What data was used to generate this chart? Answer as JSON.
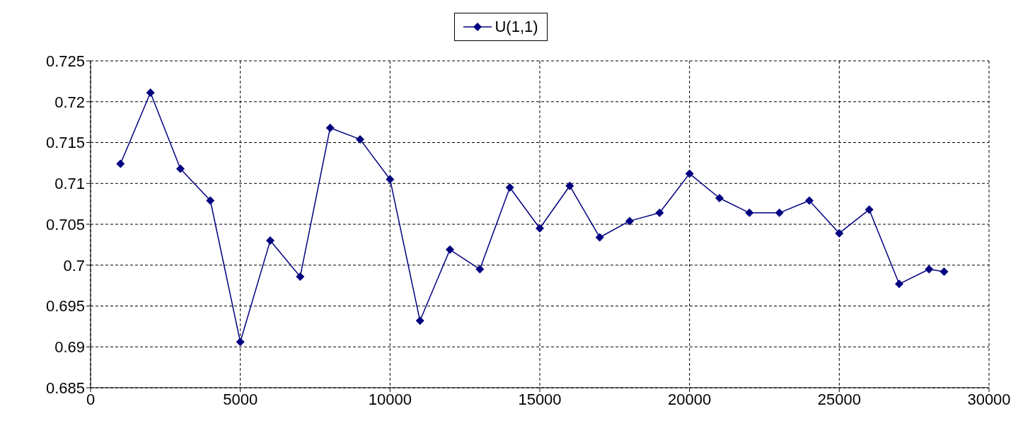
{
  "chart_data": {
    "type": "line",
    "x": [
      1000,
      2000,
      3000,
      4000,
      5000,
      6000,
      7000,
      8000,
      9000,
      10000,
      11000,
      12000,
      13000,
      14000,
      15000,
      16000,
      17000,
      18000,
      19000,
      20000,
      21000,
      22000,
      23000,
      24000,
      25000,
      26000,
      27000,
      28000,
      28500
    ],
    "series": [
      {
        "name": "U(1,1)",
        "color": "#000080",
        "values": [
          0.7124,
          0.7211,
          0.7118,
          0.7079,
          0.6906,
          0.703,
          0.6986,
          0.7168,
          0.7154,
          0.7105,
          0.6932,
          0.7019,
          0.6995,
          0.7095,
          0.7045,
          0.7097,
          0.7034,
          0.7054,
          0.7064,
          0.7112,
          0.7082,
          0.7064,
          0.7064,
          0.7079,
          0.7039,
          0.7068,
          0.6977,
          0.6995,
          0.6992
        ]
      }
    ],
    "xlim": [
      0,
      30000
    ],
    "xticks": [
      0,
      5000,
      10000,
      15000,
      20000,
      25000,
      30000
    ],
    "ylim": [
      0.685,
      0.725
    ],
    "yticks": [
      0.685,
      0.69,
      0.695,
      0.7,
      0.705,
      0.71,
      0.715,
      0.72,
      0.725
    ],
    "grid": true,
    "legend": "top",
    "marker": "diamond",
    "line_style": "solid"
  }
}
